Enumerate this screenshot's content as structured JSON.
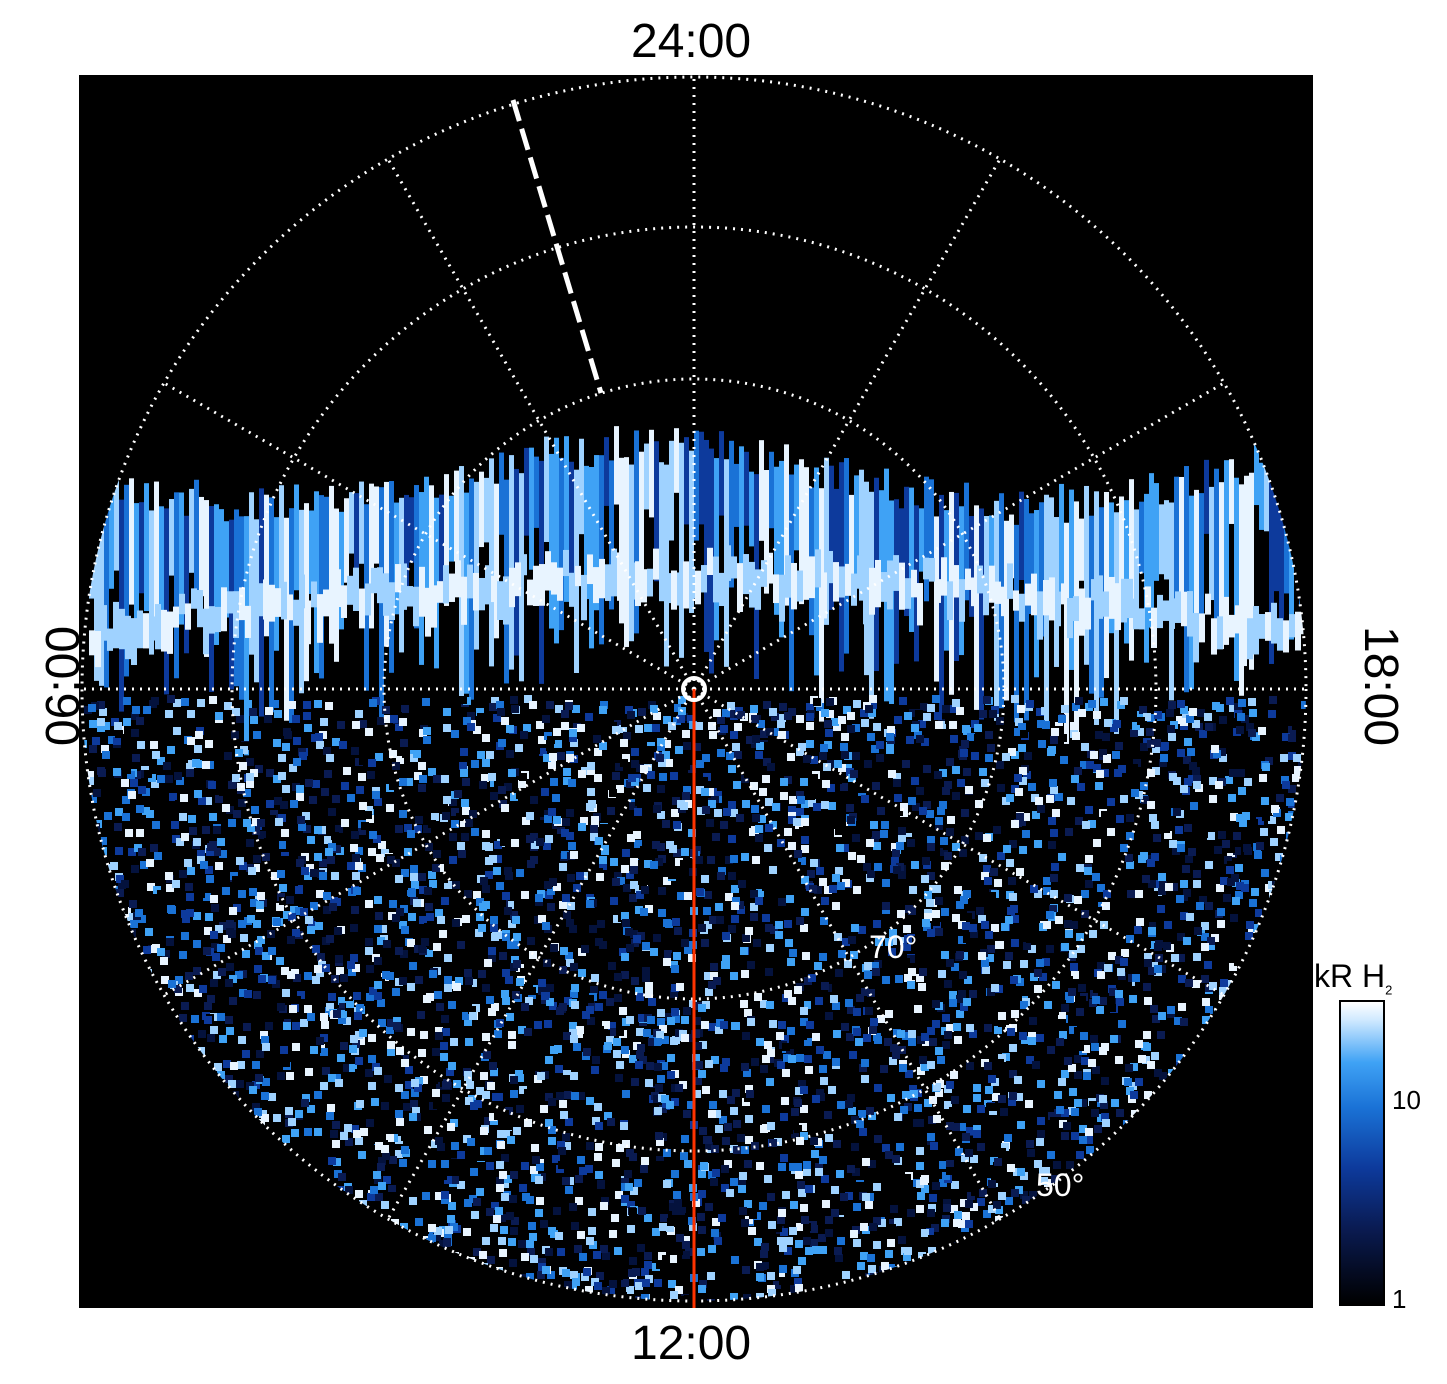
{
  "labels": {
    "top": "24:00",
    "bottom": "12:00",
    "left": "06:00",
    "right": "18:00"
  },
  "latitude_labels": [
    "70°",
    "50°"
  ],
  "colorbar": {
    "title": "kR H",
    "title_sub": "2",
    "ticks": [
      "10",
      "1"
    ]
  },
  "colors": {
    "background": "#000000",
    "grid": "#ffffff",
    "meridian_line": "#ff3300",
    "emission_dark": "#0a1b52",
    "emission_mid": "#1a72d6",
    "emission_bright": "#cfe9ff"
  }
}
